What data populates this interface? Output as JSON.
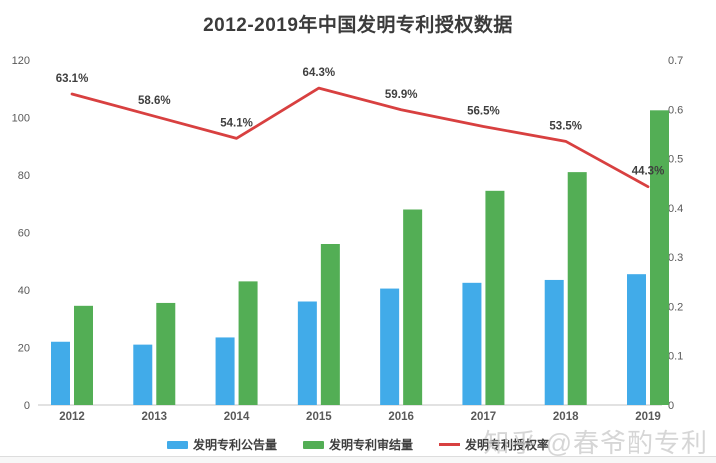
{
  "title": "2012-2019年中国发明专利授权数据",
  "watermark": "知乎 @春爷酌专利",
  "colors": {
    "blue_bar": "#41abe9",
    "green_bar": "#53ae55",
    "red_line": "#d84040",
    "axis_text": "#595959",
    "data_label_text": "#3f3f3f",
    "axis_line": "#d9d9d9",
    "title_text": "#3b3b3b",
    "watermark_text": "#c9c9c9"
  },
  "legend": {
    "items": [
      {
        "label": "发明专利公告量",
        "swatch": "bar",
        "color_key": "blue_bar"
      },
      {
        "label": "发明专利审结量",
        "swatch": "bar",
        "color_key": "green_bar"
      },
      {
        "label": "发明专利授权率",
        "swatch": "line",
        "color_key": "red_line"
      }
    ]
  },
  "chart_data": {
    "type": "bar",
    "subtype": "grouped-bars-with-line-combo",
    "title": "2012-2019年中国发明专利授权数据",
    "xlabel": "",
    "ylabel_left": "",
    "ylabel_right": "",
    "grid": false,
    "legend_position": "bottom",
    "categories": [
      "2012",
      "2013",
      "2014",
      "2015",
      "2016",
      "2017",
      "2018",
      "2019"
    ],
    "series": [
      {
        "name": "发明专利公告量",
        "type": "bar",
        "axis": "left",
        "color_key": "blue_bar",
        "values": [
          22,
          21,
          23.5,
          36,
          40.5,
          42.5,
          43.5,
          45.5
        ]
      },
      {
        "name": "发明专利审结量",
        "type": "bar",
        "axis": "left",
        "color_key": "green_bar",
        "values": [
          34.5,
          35.5,
          43,
          56,
          68,
          74.5,
          81,
          102.5
        ]
      },
      {
        "name": "发明专利授权率",
        "type": "line",
        "axis": "right",
        "color_key": "red_line",
        "values": [
          0.631,
          0.586,
          0.541,
          0.643,
          0.599,
          0.565,
          0.535,
          0.443
        ],
        "point_labels": [
          "63.1%",
          "58.6%",
          "54.1%",
          "64.3%",
          "59.9%",
          "56.5%",
          "53.5%",
          "44.3%"
        ]
      }
    ],
    "left_axis": {
      "min": 0,
      "max": 120,
      "step": 20,
      "ticks": [
        "0",
        "20",
        "40",
        "60",
        "80",
        "100",
        "120"
      ]
    },
    "right_axis": {
      "min": 0,
      "max": 0.7,
      "step": 0.1,
      "ticks": [
        "0",
        "0.1",
        "0.2",
        "0.3",
        "0.4",
        "0.5",
        "0.6",
        "0.7"
      ]
    }
  }
}
